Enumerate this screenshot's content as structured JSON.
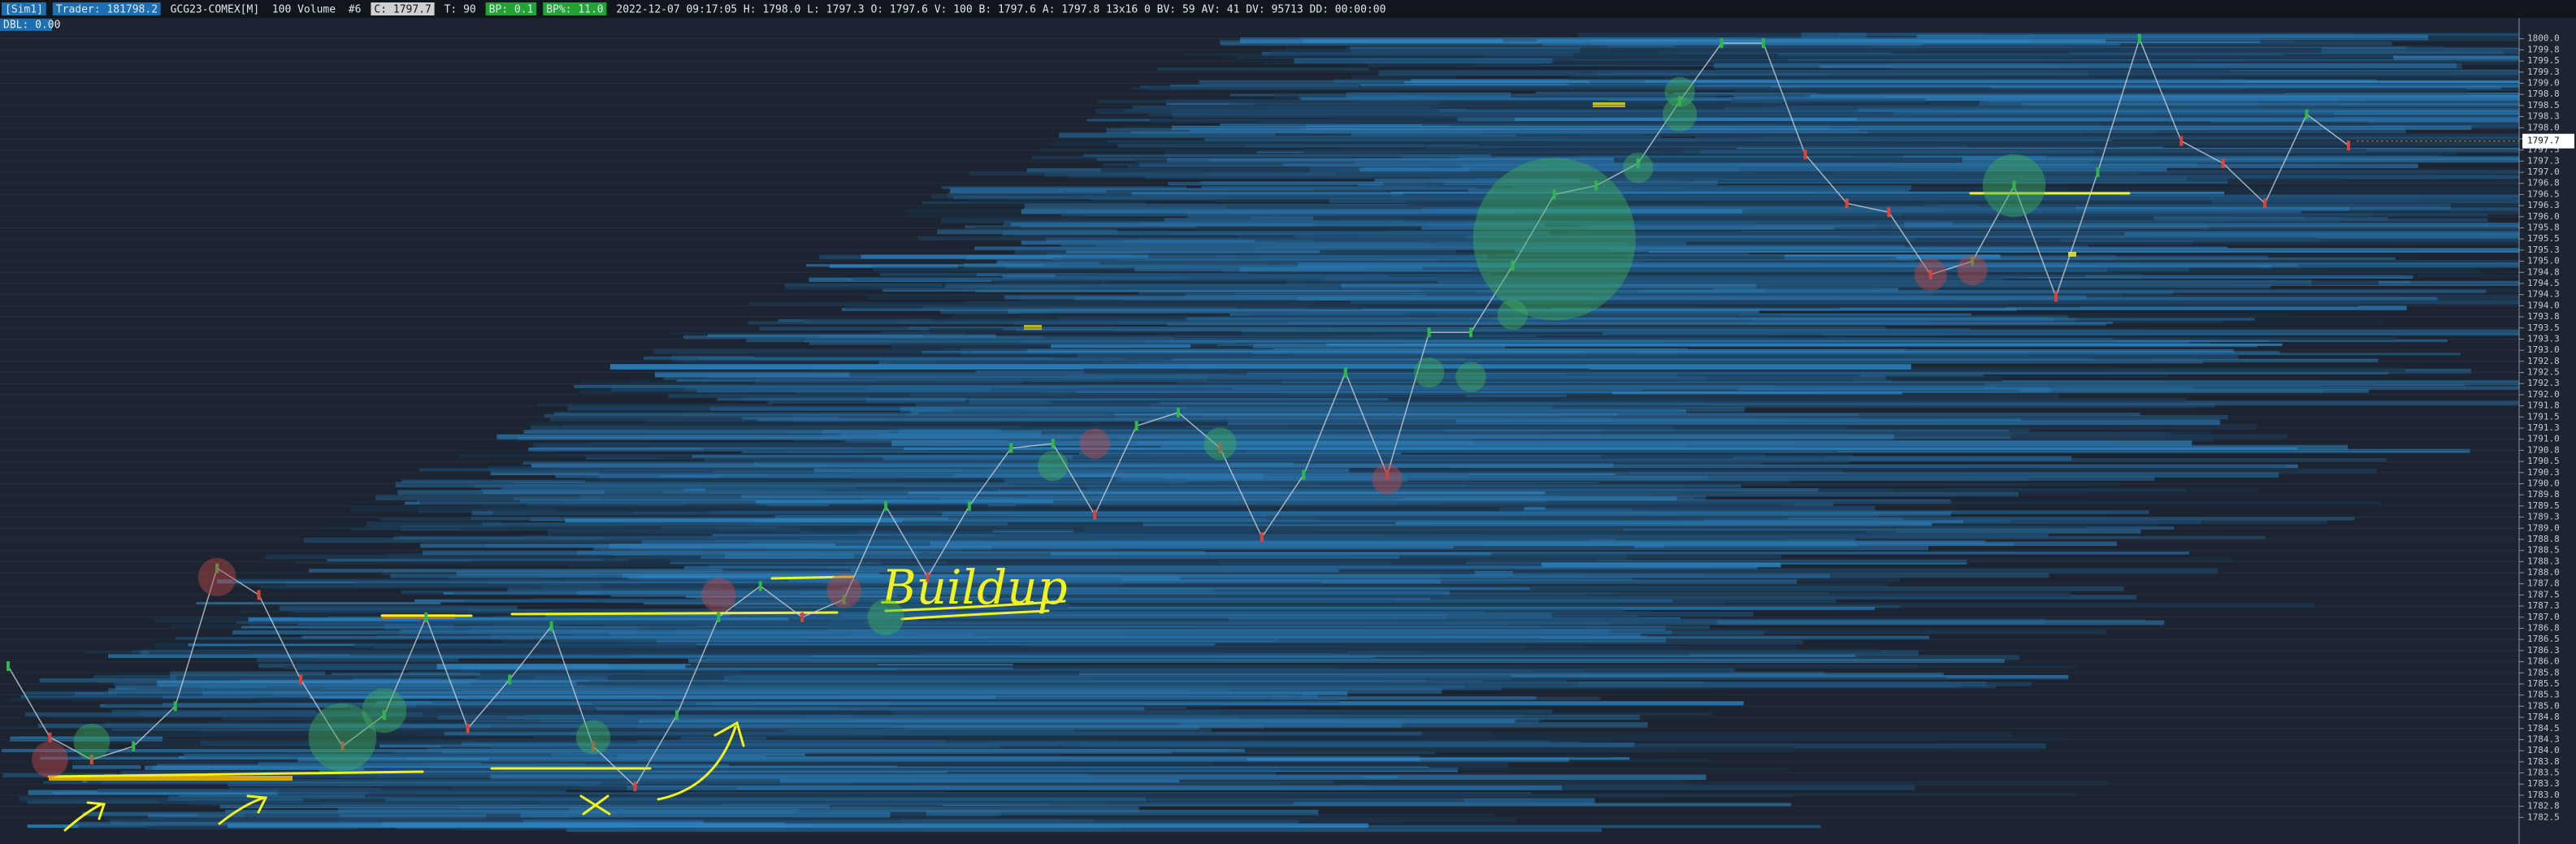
{
  "header": {
    "items": [
      {
        "text": "[Sim1]",
        "bg": "#1c6fb0"
      },
      {
        "text": "Trader: 181798.2",
        "bg": "#1c6fb0"
      },
      {
        "text": "GCG23-COMEX[M]",
        "bg": null
      },
      {
        "text": "100 Volume",
        "bg": null
      },
      {
        "text": "#6",
        "bg": null
      },
      {
        "text": "C: 1797.7",
        "bg": "#d0d0d0"
      },
      {
        "text": "T: 90",
        "bg": null
      },
      {
        "text": "BP: 0.1",
        "bg": "#21a336"
      },
      {
        "text": "BP%: 11.0",
        "bg": "#21a336"
      },
      {
        "text": "2022-12-07 09:17:05 H: 1798.0 L: 1797.3 O: 1797.6 V: 100 B: 1797.6 A: 1797.8 13x16 0 BV: 59 AV: 41 DV: 95713 DD: 00:00:00",
        "bg": null
      }
    ],
    "second_line": "DBL: 0.00",
    "last_price": "1797.7"
  },
  "price_axis": {
    "ylim": [
      1782.25,
      1800.25
    ],
    "ticks": [
      {
        "value": 1800.0,
        "label": "1800.0"
      },
      {
        "value": 1799.75,
        "label": "1799.8"
      },
      {
        "value": 1799.5,
        "label": "1799.5"
      },
      {
        "value": 1799.25,
        "label": "1799.3"
      },
      {
        "value": 1799.0,
        "label": "1799.0"
      },
      {
        "value": 1798.75,
        "label": "1798.8"
      },
      {
        "value": 1798.5,
        "label": "1798.5"
      },
      {
        "value": 1798.25,
        "label": "1798.3"
      },
      {
        "value": 1798.0,
        "label": "1798.0"
      },
      {
        "value": 1797.75,
        "label": "1797.8"
      },
      {
        "value": 1797.5,
        "label": "1797.5"
      },
      {
        "value": 1797.25,
        "label": "1797.3"
      },
      {
        "value": 1797.0,
        "label": "1797.0"
      },
      {
        "value": 1796.75,
        "label": "1796.8"
      },
      {
        "value": 1796.5,
        "label": "1796.5"
      },
      {
        "value": 1796.25,
        "label": "1796.3"
      },
      {
        "value": 1796.0,
        "label": "1796.0"
      },
      {
        "value": 1795.75,
        "label": "1795.8"
      },
      {
        "value": 1795.5,
        "label": "1795.5"
      },
      {
        "value": 1795.25,
        "label": "1795.3"
      },
      {
        "value": 1795.0,
        "label": "1795.0"
      },
      {
        "value": 1794.75,
        "label": "1794.8"
      },
      {
        "value": 1794.5,
        "label": "1794.5"
      },
      {
        "value": 1794.25,
        "label": "1794.3"
      },
      {
        "value": 1794.0,
        "label": "1794.0"
      },
      {
        "value": 1793.75,
        "label": "1793.8"
      },
      {
        "value": 1793.5,
        "label": "1793.5"
      },
      {
        "value": 1793.25,
        "label": "1793.3"
      },
      {
        "value": 1793.0,
        "label": "1793.0"
      },
      {
        "value": 1792.75,
        "label": "1792.8"
      },
      {
        "value": 1792.5,
        "label": "1792.5"
      },
      {
        "value": 1792.25,
        "label": "1792.3"
      },
      {
        "value": 1792.0,
        "label": "1792.0"
      },
      {
        "value": 1791.75,
        "label": "1791.8"
      },
      {
        "value": 1791.5,
        "label": "1791.5"
      },
      {
        "value": 1791.25,
        "label": "1791.3"
      },
      {
        "value": 1791.0,
        "label": "1791.0"
      },
      {
        "value": 1790.75,
        "label": "1790.8"
      },
      {
        "value": 1790.5,
        "label": "1790.5"
      },
      {
        "value": 1790.25,
        "label": "1790.3"
      },
      {
        "value": 1790.0,
        "label": "1790.0"
      },
      {
        "value": 1789.75,
        "label": "1789.8"
      },
      {
        "value": 1789.5,
        "label": "1789.5"
      },
      {
        "value": 1789.25,
        "label": "1789.3"
      },
      {
        "value": 1789.0,
        "label": "1789.0"
      },
      {
        "value": 1788.75,
        "label": "1788.8"
      },
      {
        "value": 1788.5,
        "label": "1788.5"
      },
      {
        "value": 1788.25,
        "label": "1788.3"
      },
      {
        "value": 1788.0,
        "label": "1788.0"
      },
      {
        "value": 1787.75,
        "label": "1787.8"
      },
      {
        "value": 1787.5,
        "label": "1787.5"
      },
      {
        "value": 1787.25,
        "label": "1787.3"
      },
      {
        "value": 1787.0,
        "label": "1787.0"
      },
      {
        "value": 1786.75,
        "label": "1786.8"
      },
      {
        "value": 1786.5,
        "label": "1786.5"
      },
      {
        "value": 1786.25,
        "label": "1786.3"
      },
      {
        "value": 1786.0,
        "label": "1786.0"
      },
      {
        "value": 1785.75,
        "label": "1785.8"
      },
      {
        "value": 1785.5,
        "label": "1785.5"
      },
      {
        "value": 1785.25,
        "label": "1785.3"
      },
      {
        "value": 1785.0,
        "label": "1785.0"
      },
      {
        "value": 1784.75,
        "label": "1784.8"
      },
      {
        "value": 1784.5,
        "label": "1784.5"
      },
      {
        "value": 1784.25,
        "label": "1784.3"
      },
      {
        "value": 1784.0,
        "label": "1784.0"
      },
      {
        "value": 1783.75,
        "label": "1783.8"
      },
      {
        "value": 1783.5,
        "label": "1783.5"
      },
      {
        "value": 1783.25,
        "label": "1783.3"
      },
      {
        "value": 1783.0,
        "label": "1783.0"
      },
      {
        "value": 1782.75,
        "label": "1782.8"
      },
      {
        "value": 1782.5,
        "label": "1782.5"
      }
    ]
  },
  "price_series": {
    "values": [
      1785.9,
      1784.3,
      1783.8,
      1784.1,
      1785.0,
      1788.1,
      1787.5,
      1785.6,
      1784.1,
      1784.8,
      1787.0,
      1784.5,
      1785.6,
      1786.8,
      1784.1,
      1783.2,
      1784.8,
      1787.0,
      1787.7,
      1787.0,
      1787.4,
      1789.5,
      1787.9,
      1789.5,
      1790.8,
      1790.9,
      1789.3,
      1791.3,
      1791.6,
      1790.8,
      1788.8,
      1790.2,
      1792.5,
      1790.2,
      1793.4,
      1793.4,
      1794.9,
      1796.5,
      1796.7,
      1797.2,
      1798.6,
      1799.9,
      1799.9,
      1797.4,
      1796.3,
      1796.1,
      1794.7,
      1795.0,
      1796.7,
      1794.2,
      1797.0,
      1800.0,
      1797.7,
      1797.2,
      1796.3,
      1798.3,
      1797.6
    ],
    "up_color": "#2fb84a",
    "down_color": "#d8433a"
  },
  "bubbles": [
    {
      "at": 1,
      "price": 1783.8,
      "volume": 20,
      "side": "sell"
    },
    {
      "at": 2,
      "price": 1784.2,
      "volume": 20,
      "side": "buy"
    },
    {
      "at": 5,
      "price": 1787.9,
      "volume": 22,
      "side": "sell"
    },
    {
      "at": 8,
      "price": 1784.3,
      "volume": 70,
      "side": "buy"
    },
    {
      "at": 9,
      "price": 1784.9,
      "volume": 30,
      "side": "buy"
    },
    {
      "at": 14,
      "price": 1784.3,
      "volume": 18,
      "side": "buy"
    },
    {
      "at": 17,
      "price": 1787.5,
      "volume": 18,
      "side": "sell"
    },
    {
      "at": 20,
      "price": 1787.6,
      "volume": 18,
      "side": "sell"
    },
    {
      "at": 21,
      "price": 1787.0,
      "volume": 20,
      "side": "buy"
    },
    {
      "at": 25,
      "price": 1790.4,
      "volume": 14,
      "side": "buy"
    },
    {
      "at": 26,
      "price": 1790.9,
      "volume": 14,
      "side": "sell"
    },
    {
      "at": 29,
      "price": 1790.9,
      "volume": 16,
      "side": "buy"
    },
    {
      "at": 33,
      "price": 1790.1,
      "volume": 14,
      "side": "sell"
    },
    {
      "at": 34,
      "price": 1792.5,
      "volume": 14,
      "side": "buy"
    },
    {
      "at": 35,
      "price": 1792.4,
      "volume": 14,
      "side": "buy"
    },
    {
      "at": 36,
      "price": 1793.8,
      "volume": 14,
      "side": "buy"
    },
    {
      "at": 37,
      "price": 1795.5,
      "volume": 400,
      "side": "buy"
    },
    {
      "at": 39,
      "price": 1797.1,
      "volume": 14,
      "side": "buy"
    },
    {
      "at": 40,
      "price": 1798.3,
      "volume": 18,
      "side": "buy"
    },
    {
      "at": 40,
      "price": 1798.8,
      "volume": 14,
      "side": "buy"
    },
    {
      "at": 46,
      "price": 1794.7,
      "volume": 16,
      "side": "sell"
    },
    {
      "at": 47,
      "price": 1794.8,
      "volume": 14,
      "side": "sell"
    },
    {
      "at": 48,
      "price": 1796.7,
      "volume": 60,
      "side": "buy"
    }
  ],
  "annotation": "Buildup"
}
